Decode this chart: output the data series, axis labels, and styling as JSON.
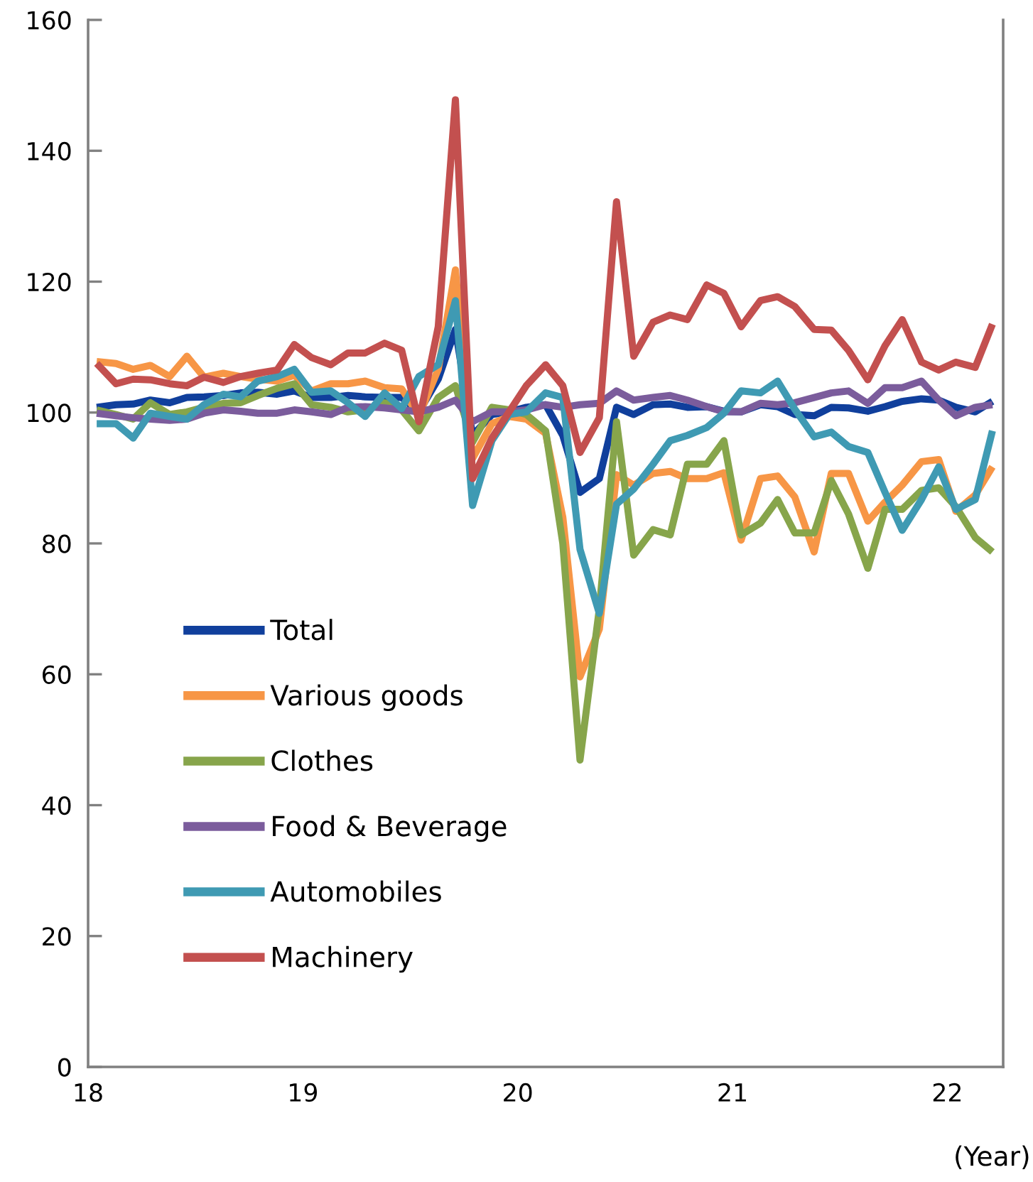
{
  "chart_data": {
    "type": "line",
    "xlabel": "(Year)",
    "legend": "bottom left",
    "grid": false,
    "marker": "none",
    "line_style": "solid",
    "xlim": [
      18,
      22.26
    ],
    "xticks": [
      18,
      19,
      20,
      21,
      22
    ],
    "ylim": [
      0,
      160
    ],
    "yticks": [
      0,
      20,
      40,
      60,
      80,
      100,
      120,
      140,
      160
    ],
    "x": [
      18.04,
      18.13,
      18.21,
      18.29,
      18.38,
      18.46,
      18.54,
      18.63,
      18.71,
      18.79,
      18.88,
      18.96,
      19.04,
      19.13,
      19.21,
      19.29,
      19.38,
      19.46,
      19.54,
      19.63,
      19.71,
      19.79,
      19.88,
      19.96,
      20.04,
      20.13,
      20.21,
      20.29,
      20.38,
      20.46,
      20.54,
      20.63,
      20.71,
      20.79,
      20.88,
      20.96,
      21.04,
      21.13,
      21.21,
      21.29,
      21.38,
      21.46,
      21.54,
      21.63,
      21.71,
      21.79,
      21.88,
      21.96,
      22.04,
      22.13,
      22.21
    ],
    "series": [
      {
        "name": "Total",
        "color": "#103f9c",
        "values": [
          100.8,
          101.2,
          101.3,
          101.9,
          101.5,
          102.3,
          102.4,
          102.6,
          103.0,
          103.1,
          102.8,
          103.3,
          102.3,
          102.3,
          102.6,
          102.4,
          102.3,
          102.3,
          100.1,
          105.1,
          112.7,
          96.5,
          99.7,
          100.1,
          100.8,
          101.2,
          96.5,
          87.8,
          89.9,
          100.8,
          99.7,
          101.2,
          101.3,
          100.8,
          100.9,
          100.2,
          100.1,
          101.2,
          100.9,
          99.7,
          99.5,
          100.8,
          100.7,
          100.2,
          100.9,
          101.7,
          102.1,
          101.9,
          100.8,
          100.1,
          101.7
        ]
      },
      {
        "name": "Various goods",
        "color": "#f79646",
        "values": [
          107.8,
          107.5,
          106.6,
          107.2,
          105.5,
          108.6,
          105.4,
          106.0,
          105.5,
          105.1,
          104.8,
          105.7,
          103.3,
          104.4,
          104.4,
          104.8,
          103.8,
          103.6,
          99.5,
          106.6,
          121.8,
          93.0,
          98.3,
          99.4,
          99.0,
          96.8,
          84.0,
          59.6,
          66.9,
          90.5,
          88.9,
          90.7,
          91.0,
          89.9,
          89.9,
          90.8,
          80.5,
          89.9,
          90.3,
          87.1,
          78.7,
          90.7,
          90.7,
          83.4,
          86.3,
          88.9,
          92.5,
          92.8,
          84.9,
          87.4,
          91.7
        ]
      },
      {
        "name": "Clothes",
        "color": "#87a54b",
        "values": [
          100.4,
          99.7,
          99.0,
          101.5,
          99.7,
          100.1,
          100.8,
          101.4,
          101.5,
          102.6,
          103.7,
          104.4,
          101.2,
          100.8,
          100.1,
          100.4,
          101.5,
          100.4,
          97.2,
          102.3,
          104.1,
          95.5,
          100.8,
          100.4,
          99.7,
          97.2,
          80.0,
          46.9,
          70.0,
          98.6,
          78.2,
          82.1,
          81.3,
          92.1,
          92.1,
          95.7,
          81.3,
          83.1,
          86.7,
          81.6,
          81.6,
          89.6,
          84.5,
          76.2,
          85.2,
          85.2,
          88.1,
          88.5,
          85.6,
          80.9,
          78.7
        ]
      },
      {
        "name": "Food & Beverage",
        "color": "#7b5c9c",
        "values": [
          99.9,
          99.5,
          99.2,
          99.0,
          98.8,
          99.0,
          99.9,
          100.4,
          100.2,
          99.9,
          99.9,
          100.4,
          100.1,
          99.7,
          100.8,
          100.9,
          100.7,
          100.4,
          100.1,
          100.8,
          101.9,
          98.6,
          100.1,
          100.1,
          100.4,
          101.2,
          100.8,
          101.2,
          101.4,
          103.3,
          101.9,
          102.3,
          102.6,
          101.9,
          100.9,
          100.1,
          100.1,
          101.4,
          101.2,
          101.5,
          102.3,
          103.0,
          103.3,
          101.4,
          103.8,
          103.8,
          104.8,
          101.9,
          99.5,
          100.8,
          101.2
        ]
      },
      {
        "name": "Automobiles",
        "color": "#3f9ab3",
        "values": [
          98.3,
          98.3,
          96.1,
          99.9,
          99.4,
          99.0,
          101.2,
          102.8,
          102.4,
          104.8,
          105.5,
          106.6,
          103.1,
          103.3,
          101.5,
          99.4,
          103.0,
          100.6,
          105.5,
          107.3,
          117.1,
          85.8,
          95.7,
          99.7,
          100.1,
          103.0,
          102.3,
          79.1,
          69.3,
          86.0,
          88.3,
          92.1,
          95.7,
          96.5,
          97.7,
          99.9,
          103.3,
          103.0,
          104.8,
          100.5,
          96.3,
          97.0,
          94.8,
          93.9,
          87.8,
          82.0,
          86.7,
          91.7,
          85.2,
          86.7,
          97.2
        ]
      },
      {
        "name": "Machinery",
        "color": "#c3504f",
        "values": [
          107.5,
          104.4,
          105.1,
          105.0,
          104.4,
          104.1,
          105.4,
          104.6,
          105.5,
          106.0,
          106.5,
          110.4,
          108.4,
          107.3,
          109.1,
          109.1,
          110.6,
          109.5,
          98.6,
          113.1,
          147.8,
          89.9,
          96.1,
          100.1,
          104.1,
          107.3,
          104.1,
          93.9,
          99.2,
          132.2,
          108.6,
          113.8,
          114.9,
          114.2,
          119.5,
          118.2,
          113.1,
          117.1,
          117.7,
          116.2,
          112.7,
          112.6,
          109.5,
          105.0,
          110.2,
          114.2,
          107.7,
          106.5,
          107.7,
          106.9,
          113.5
        ]
      }
    ]
  }
}
